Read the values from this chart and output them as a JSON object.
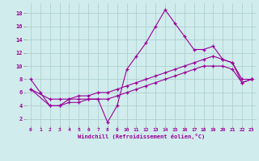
{
  "xlabel": "Windchill (Refroidissement éolien,°C)",
  "background_color": "#d0ecec",
  "grid_color": "#a8cccc",
  "line_color": "#990099",
  "x_ticks": [
    0,
    1,
    2,
    3,
    4,
    5,
    6,
    7,
    8,
    9,
    10,
    11,
    12,
    13,
    14,
    15,
    16,
    17,
    18,
    19,
    20,
    21,
    22,
    23
  ],
  "y_ticks": [
    2,
    4,
    6,
    8,
    10,
    12,
    14,
    16,
    18
  ],
  "ylim": [
    1.0,
    19.5
  ],
  "xlim": [
    -0.5,
    23.5
  ],
  "series1_x": [
    0,
    1,
    2,
    3,
    4,
    5,
    6,
    7,
    8,
    9,
    10,
    11,
    12,
    13,
    14,
    15,
    16,
    17,
    18,
    19,
    20,
    21,
    22,
    23
  ],
  "series1_y": [
    8,
    6,
    4,
    4,
    5,
    5,
    5,
    5,
    1.5,
    4,
    9.5,
    11.5,
    13.5,
    16,
    18.5,
    16.5,
    14.5,
    12.5,
    12.5,
    13,
    11,
    10.5,
    8,
    8
  ],
  "series2_x": [
    0,
    2,
    3,
    4,
    5,
    6,
    7,
    8,
    9,
    10,
    11,
    12,
    13,
    14,
    15,
    16,
    17,
    18,
    19,
    20,
    21,
    22,
    23
  ],
  "series2_y": [
    6.5,
    5,
    5,
    5,
    5.5,
    5.5,
    6,
    6,
    6.5,
    7,
    7.5,
    8,
    8.5,
    9,
    9.5,
    10,
    10.5,
    11,
    11.5,
    11,
    10.5,
    7.5,
    8
  ],
  "series3_x": [
    0,
    2,
    3,
    4,
    5,
    6,
    7,
    8,
    9,
    10,
    11,
    12,
    13,
    14,
    15,
    16,
    17,
    18,
    19,
    20,
    21,
    22,
    23
  ],
  "series3_y": [
    6.5,
    4,
    4,
    4.5,
    4.5,
    5,
    5,
    5,
    5.5,
    6,
    6.5,
    7,
    7.5,
    8,
    8.5,
    9,
    9.5,
    10,
    10,
    10,
    9.5,
    7.5,
    8
  ]
}
